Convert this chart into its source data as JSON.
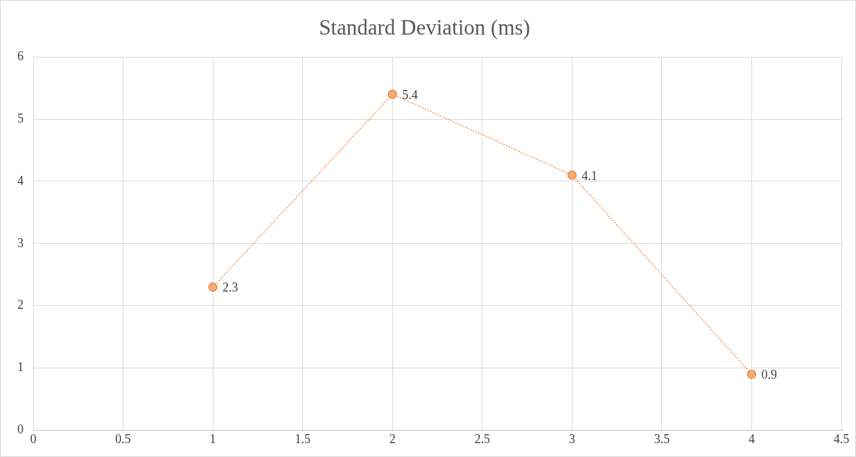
{
  "chart_data": {
    "type": "line",
    "title": "Standard Deviation (ms)",
    "x": [
      1,
      2,
      3,
      4
    ],
    "series": [
      {
        "color": "#ed7d31",
        "values": [
          2.3,
          5.4,
          4.1,
          0.9
        ]
      }
    ],
    "xlim": [
      0,
      4.5
    ],
    "xticks": [
      0,
      0.5,
      1,
      1.5,
      2,
      2.5,
      3,
      3.5,
      4,
      4.5
    ],
    "ylim": [
      0,
      6
    ],
    "yticks": [
      0,
      1,
      2,
      3,
      4,
      5,
      6
    ],
    "grid": true,
    "legend": false,
    "marker": "circle",
    "line_style": "dotted",
    "data_labels": true
  }
}
